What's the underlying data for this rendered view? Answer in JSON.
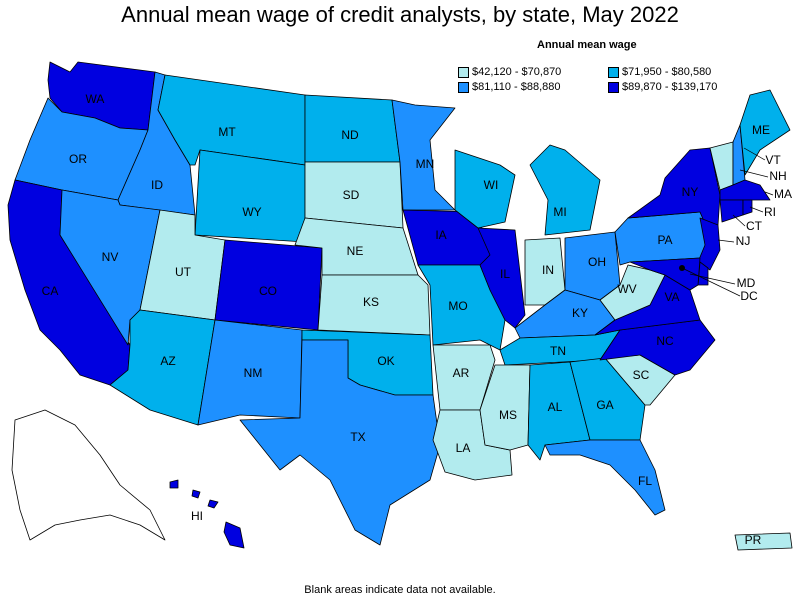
{
  "title": "Annual mean wage of credit analysts, by state, May 2022",
  "legend": {
    "title": "Annual mean wage",
    "items": [
      {
        "label": "$42,120 - $70,870",
        "color": "#b2ebee"
      },
      {
        "label": "$71,950 - $80,580",
        "color": "#00b0ec"
      },
      {
        "label": "$81,110 - $88,880",
        "color": "#1e90ff"
      },
      {
        "label": "$89,870 - $139,170",
        "color": "#0000e0"
      }
    ]
  },
  "footnote": "Blank areas indicate data not available.",
  "states": {
    "WA": {
      "class": 4
    },
    "OR": {
      "class": 3
    },
    "CA": {
      "class": 4
    },
    "ID": {
      "class": 3
    },
    "NV": {
      "class": 3
    },
    "MT": {
      "class": 2
    },
    "WY": {
      "class": 2
    },
    "UT": {
      "class": 1
    },
    "AZ": {
      "class": 2
    },
    "CO": {
      "class": 4
    },
    "NM": {
      "class": 3
    },
    "ND": {
      "class": 2
    },
    "SD": {
      "class": 1
    },
    "NE": {
      "class": 1
    },
    "KS": {
      "class": 1
    },
    "OK": {
      "class": 2
    },
    "TX": {
      "class": 3
    },
    "MN": {
      "class": 3
    },
    "IA": {
      "class": 4
    },
    "MO": {
      "class": 2
    },
    "AR": {
      "class": 1
    },
    "LA": {
      "class": 1
    },
    "WI": {
      "class": 2
    },
    "IL": {
      "class": 4
    },
    "MI": {
      "class": 2
    },
    "IN": {
      "class": 1
    },
    "OH": {
      "class": 3
    },
    "KY": {
      "class": 3
    },
    "TN": {
      "class": 2
    },
    "MS": {
      "class": 1
    },
    "AL": {
      "class": 2
    },
    "GA": {
      "class": 2
    },
    "FL": {
      "class": 3
    },
    "SC": {
      "class": 1
    },
    "NC": {
      "class": 4
    },
    "VA": {
      "class": 4
    },
    "WV": {
      "class": 1
    },
    "PA": {
      "class": 3
    },
    "NY": {
      "class": 4
    },
    "VT": {
      "class": 1
    },
    "NH": {
      "class": 3
    },
    "ME": {
      "class": 2
    },
    "MA": {
      "class": 4
    },
    "RI": {
      "class": 4
    },
    "CT": {
      "class": 4
    },
    "NJ": {
      "class": 4
    },
    "DE": {
      "class": 4
    },
    "MD": {
      "class": 4
    },
    "DC": {
      "class": 4
    },
    "AK": {
      "class": 0
    },
    "HI": {
      "class": 4
    },
    "PR": {
      "class": 1
    }
  },
  "labels": [
    "WA",
    "OR",
    "CA",
    "ID",
    "NV",
    "MT",
    "WY",
    "UT",
    "AZ",
    "CO",
    "NM",
    "ND",
    "SD",
    "NE",
    "KS",
    "OK",
    "TX",
    "MN",
    "IA",
    "MO",
    "AR",
    "LA",
    "WI",
    "IL",
    "MI",
    "IN",
    "OH",
    "KY",
    "TN",
    "MS",
    "AL",
    "GA",
    "FL",
    "SC",
    "NC",
    "VA",
    "WV",
    "PA",
    "NY",
    "VT",
    "NH",
    "ME",
    "MA",
    "RI",
    "CT",
    "NJ",
    "MD",
    "DC",
    "HI",
    "PR"
  ]
}
